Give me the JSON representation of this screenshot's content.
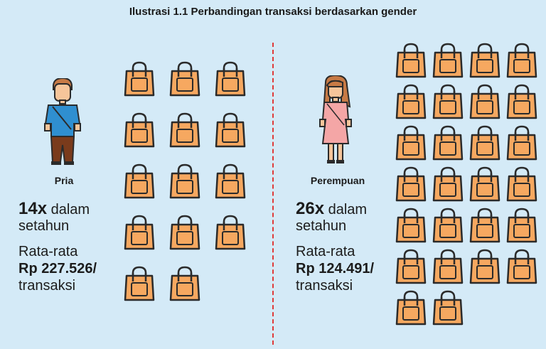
{
  "title": "Ilustrasi 1.1 Perbandingan transaksi berdasarkan gender",
  "colors": {
    "background": "#d4eaf7",
    "divider": "#e03a3a",
    "bag_fill": "#f6a860",
    "bag_outline": "#2b2b2b",
    "male_shirt": "#2f8fd0",
    "male_pants": "#7a3b1c",
    "female_dress": "#f4a6a6",
    "hair": "#c77a45",
    "skin": "#f6c59a"
  },
  "male": {
    "label": "Pria",
    "count": "14x",
    "count_suffix": "dalam",
    "count_suffix2": "setahun",
    "avg_label": "Rata-rata",
    "avg_value": "Rp 227.526/",
    "avg_unit": "transaksi",
    "bags": 14,
    "icon": "male-person-icon"
  },
  "female": {
    "label": "Perempuan",
    "count": "26x",
    "count_suffix": "dalam",
    "count_suffix2": "setahun",
    "avg_label": "Rata-rata",
    "avg_value": "Rp 124.491/",
    "avg_unit": "transaksi",
    "bags": 26,
    "icon": "female-person-icon"
  }
}
